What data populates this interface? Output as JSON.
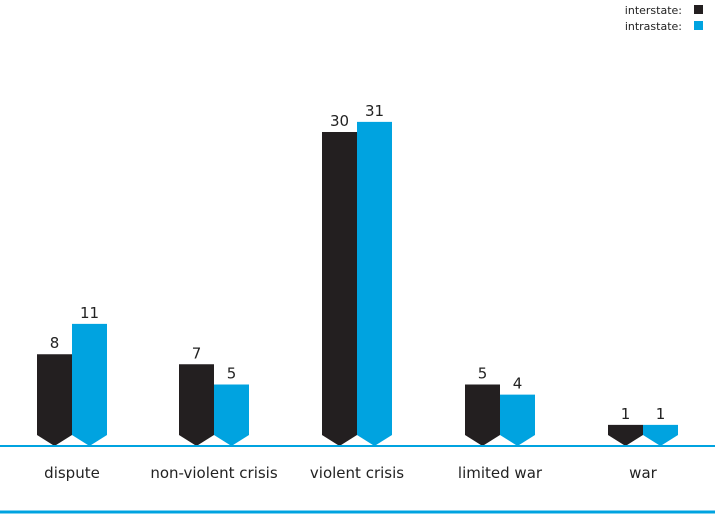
{
  "chart_data": {
    "type": "bar",
    "categories": [
      "dispute",
      "non-violent crisis",
      "violent crisis",
      "limited war",
      "war"
    ],
    "series": [
      {
        "name": "interstate:",
        "values": [
          8,
          7,
          30,
          5,
          1
        ],
        "color": "#231f20"
      },
      {
        "name": "intrastate:",
        "values": [
          11,
          5,
          31,
          4,
          1
        ],
        "color": "#00a3e0"
      }
    ],
    "ylim": [
      0,
      31
    ],
    "grid": false,
    "legend_position": "top-right",
    "bar_style": "arrow-pointed bottom",
    "baseline_color": "#00a3e0"
  }
}
